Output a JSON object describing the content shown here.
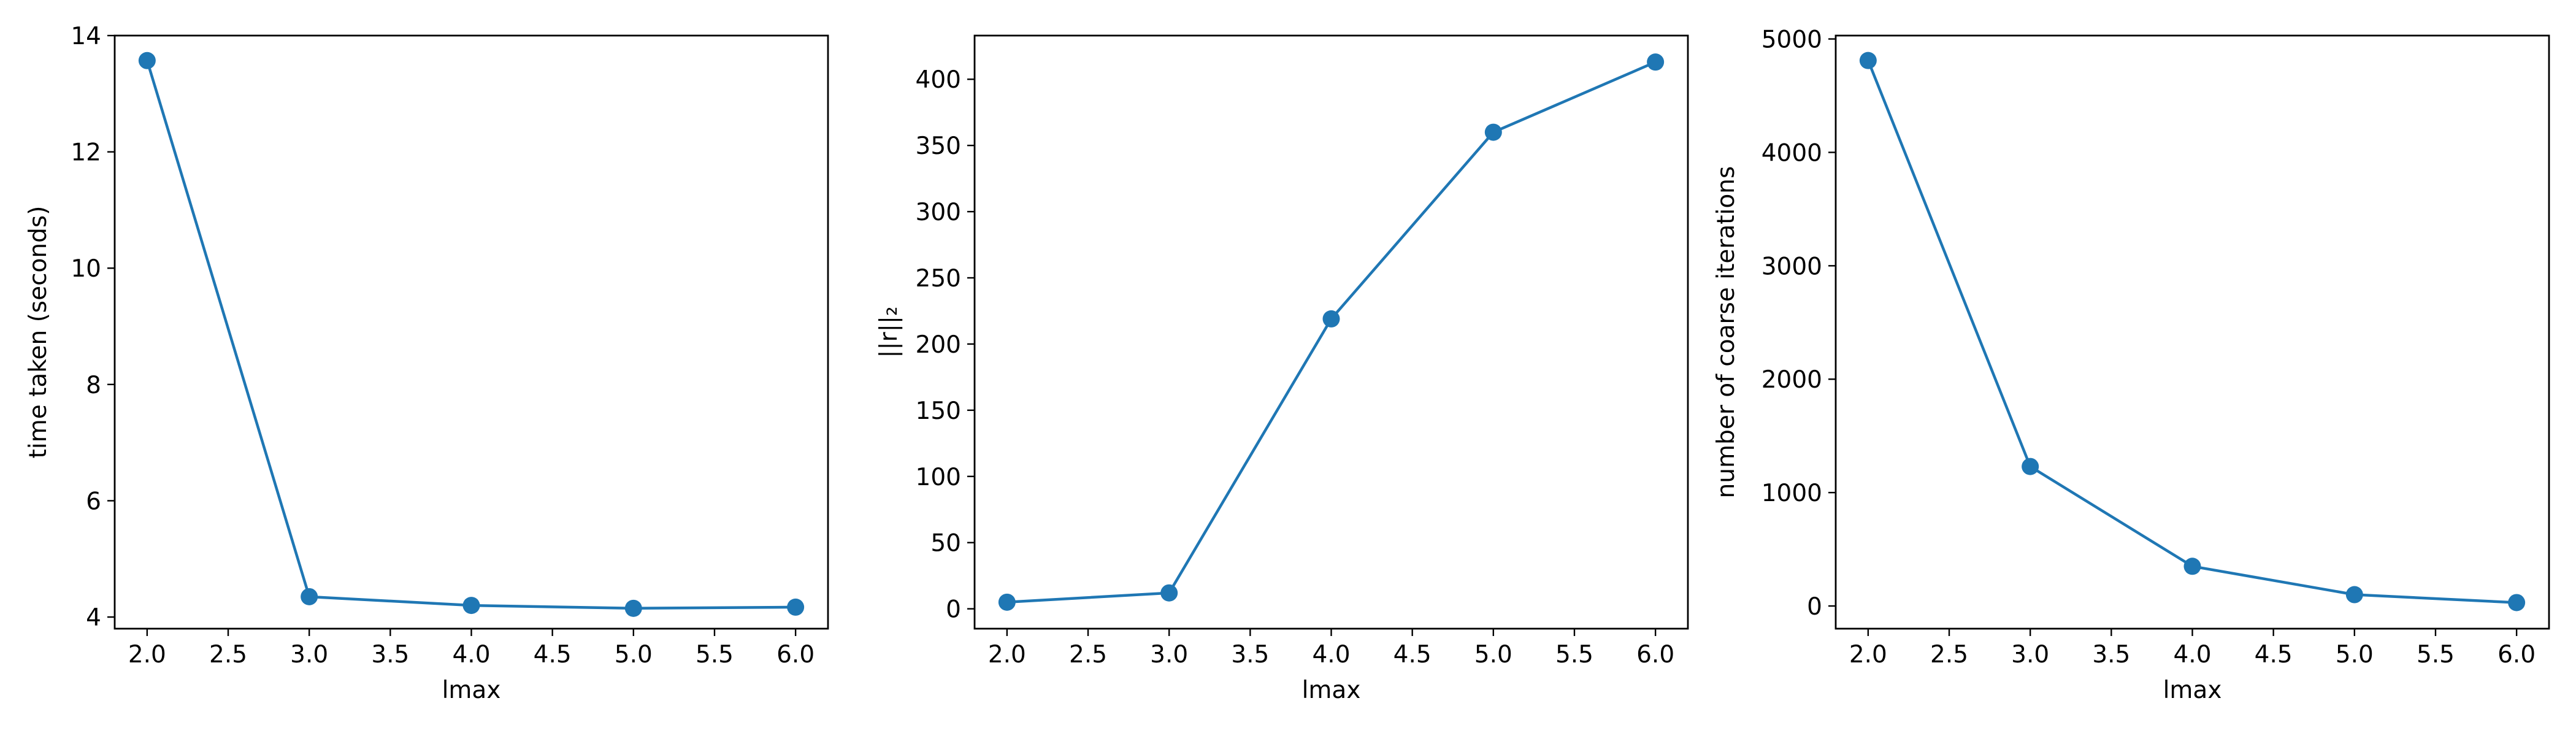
{
  "colors": {
    "series": "#1f77b4",
    "axis": "#000000",
    "background": "#ffffff"
  },
  "chart_data": [
    {
      "type": "line",
      "marker": "circle",
      "title": "",
      "xlabel": "lmax",
      "ylabel": "time taken (seconds)",
      "xlim": [
        1.8,
        6.2
      ],
      "ylim": [
        3.8,
        14.0
      ],
      "xticks": [
        2.0,
        2.5,
        3.0,
        3.5,
        4.0,
        4.5,
        5.0,
        5.5,
        6.0
      ],
      "xtick_labels": [
        "2.0",
        "2.5",
        "3.0",
        "3.5",
        "4.0",
        "4.5",
        "5.0",
        "5.5",
        "6.0"
      ],
      "yticks": [
        4,
        6,
        8,
        10,
        12,
        14
      ],
      "ytick_labels": [
        "4",
        "6",
        "8",
        "10",
        "12",
        "14"
      ],
      "x": [
        2.0,
        3.0,
        4.0,
        5.0,
        6.0
      ],
      "series": [
        {
          "name": "time taken",
          "values": [
            13.57,
            4.35,
            4.2,
            4.15,
            4.17
          ]
        }
      ]
    },
    {
      "type": "line",
      "marker": "circle",
      "title": "",
      "xlabel": "lmax",
      "ylabel": "||r||₂",
      "xlim": [
        1.8,
        6.2
      ],
      "ylim": [
        -15,
        433
      ],
      "xticks": [
        2.0,
        2.5,
        3.0,
        3.5,
        4.0,
        4.5,
        5.0,
        5.5,
        6.0
      ],
      "xtick_labels": [
        "2.0",
        "2.5",
        "3.0",
        "3.5",
        "4.0",
        "4.5",
        "5.0",
        "5.5",
        "6.0"
      ],
      "yticks": [
        0,
        50,
        100,
        150,
        200,
        250,
        300,
        350,
        400
      ],
      "ytick_labels": [
        "0",
        "50",
        "100",
        "150",
        "200",
        "250",
        "300",
        "350",
        "400"
      ],
      "x": [
        2.0,
        3.0,
        4.0,
        5.0,
        6.0
      ],
      "series": [
        {
          "name": "||r||₂",
          "values": [
            5,
            12,
            219,
            360,
            413
          ]
        }
      ]
    },
    {
      "type": "line",
      "marker": "circle",
      "title": "",
      "xlabel": "lmax",
      "ylabel": "number of coarse iterations",
      "xlim": [
        1.8,
        6.2
      ],
      "ylim": [
        -200,
        5030
      ],
      "xticks": [
        2.0,
        2.5,
        3.0,
        3.5,
        4.0,
        4.5,
        5.0,
        5.5,
        6.0
      ],
      "xtick_labels": [
        "2.0",
        "2.5",
        "3.0",
        "3.5",
        "4.0",
        "4.5",
        "5.0",
        "5.5",
        "6.0"
      ],
      "yticks": [
        0,
        1000,
        2000,
        3000,
        4000,
        5000
      ],
      "ytick_labels": [
        "0",
        "1000",
        "2000",
        "3000",
        "4000",
        "5000"
      ],
      "x": [
        2.0,
        3.0,
        4.0,
        5.0,
        6.0
      ],
      "series": [
        {
          "name": "coarse iterations",
          "values": [
            4810,
            1230,
            350,
            100,
            30
          ]
        }
      ]
    }
  ]
}
